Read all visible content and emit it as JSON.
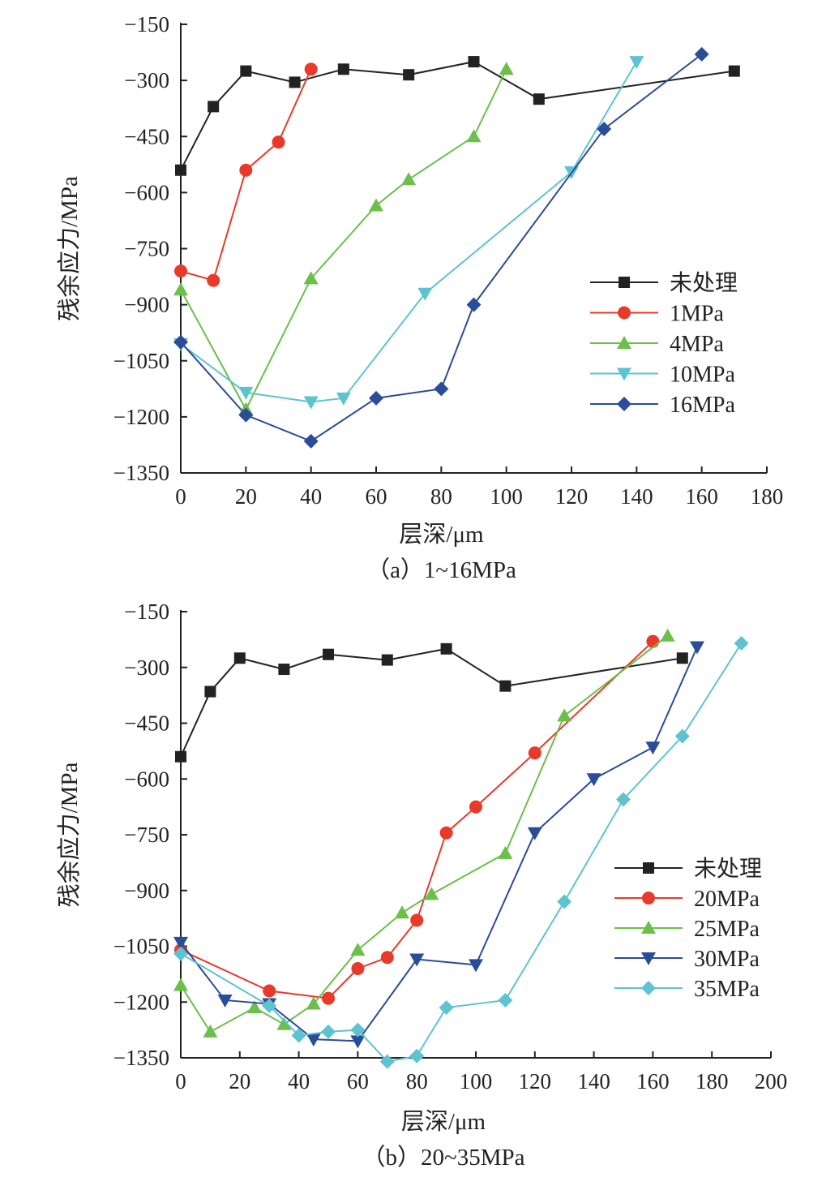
{
  "chart_data": [
    {
      "type": "line",
      "caption": "（a）1~16MPa",
      "xlabel": "层深/μm",
      "ylabel": "残余应力/MPa",
      "xlim": [
        0,
        180
      ],
      "ylim": [
        -1350,
        -150
      ],
      "xticks": [
        0,
        20,
        40,
        60,
        80,
        100,
        120,
        140,
        160,
        180
      ],
      "yticks": [
        -150,
        -300,
        -450,
        -600,
        -750,
        -900,
        -1050,
        -1200,
        -1350
      ],
      "legend_position": "right",
      "series": [
        {
          "name": "未处理",
          "color": "#222222",
          "marker": "square",
          "x": [
            0,
            10,
            20,
            35,
            50,
            70,
            90,
            110,
            170
          ],
          "y": [
            -540,
            -370,
            -275,
            -305,
            -270,
            -285,
            -250,
            -350,
            -275
          ]
        },
        {
          "name": "1MPa",
          "color": "#e8392b",
          "marker": "circle",
          "x": [
            0,
            10,
            20,
            30,
            40
          ],
          "y": [
            -810,
            -835,
            -540,
            -465,
            -270
          ]
        },
        {
          "name": "4MPa",
          "color": "#6cbf4a",
          "marker": "triangle-up",
          "x": [
            0,
            20,
            40,
            60,
            70,
            90,
            100
          ],
          "y": [
            -860,
            -1180,
            -830,
            -635,
            -565,
            -450,
            -270
          ]
        },
        {
          "name": "10MPa",
          "color": "#5ec3d0",
          "marker": "triangle-down",
          "x": [
            0,
            20,
            40,
            50,
            75,
            120,
            140
          ],
          "y": [
            -1005,
            -1135,
            -1160,
            -1150,
            -870,
            -545,
            -250
          ]
        },
        {
          "name": "16MPa",
          "color": "#2b4c98",
          "marker": "diamond",
          "x": [
            0,
            20,
            40,
            60,
            80,
            90,
            130,
            160
          ],
          "y": [
            -1000,
            -1195,
            -1265,
            -1150,
            -1125,
            -900,
            -430,
            -230
          ]
        }
      ]
    },
    {
      "type": "line",
      "caption": "（b）20~35MPa",
      "xlabel": "层深/μm",
      "ylabel": "残余应力/MPa",
      "xlim": [
        0,
        200
      ],
      "ylim": [
        -1350,
        -150
      ],
      "xticks": [
        0,
        20,
        40,
        60,
        80,
        100,
        120,
        140,
        160,
        180,
        200
      ],
      "yticks": [
        -150,
        -300,
        -450,
        -600,
        -750,
        -900,
        -1050,
        -1200,
        -1350
      ],
      "legend_position": "right",
      "series": [
        {
          "name": "未处理",
          "color": "#222222",
          "marker": "square",
          "x": [
            0,
            10,
            20,
            35,
            50,
            70,
            90,
            110,
            170
          ],
          "y": [
            -540,
            -365,
            -275,
            -305,
            -265,
            -280,
            -250,
            -350,
            -275
          ]
        },
        {
          "name": "20MPa",
          "color": "#e8392b",
          "marker": "circle",
          "x": [
            0,
            30,
            50,
            60,
            70,
            80,
            90,
            100,
            120,
            160
          ],
          "y": [
            -1060,
            -1170,
            -1190,
            -1110,
            -1080,
            -980,
            -745,
            -675,
            -530,
            -230
          ]
        },
        {
          "name": "25MPa",
          "color": "#6cbf4a",
          "marker": "triangle-up",
          "x": [
            0,
            10,
            25,
            35,
            45,
            60,
            75,
            85,
            110,
            130,
            165
          ],
          "y": [
            -1155,
            -1280,
            -1215,
            -1260,
            -1205,
            -1060,
            -960,
            -910,
            -800,
            -430,
            -215
          ]
        },
        {
          "name": "30MPa",
          "color": "#2b4c98",
          "marker": "triangle-down",
          "x": [
            0,
            15,
            30,
            45,
            60,
            80,
            100,
            120,
            140,
            160,
            175
          ],
          "y": [
            -1040,
            -1195,
            -1205,
            -1300,
            -1305,
            -1085,
            -1100,
            -745,
            -600,
            -515,
            -245
          ]
        },
        {
          "name": "35MPa",
          "color": "#5ec3d0",
          "marker": "diamond",
          "x": [
            0,
            30,
            40,
            50,
            60,
            70,
            80,
            90,
            110,
            130,
            150,
            170,
            190
          ],
          "y": [
            -1070,
            -1210,
            -1290,
            -1280,
            -1275,
            -1360,
            -1345,
            -1215,
            -1195,
            -930,
            -655,
            -485,
            -235
          ]
        }
      ]
    }
  ]
}
